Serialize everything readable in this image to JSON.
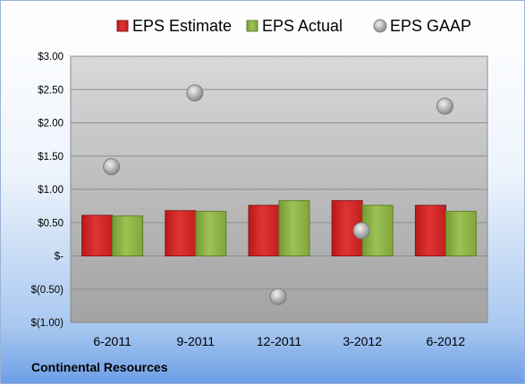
{
  "chart_data": {
    "type": "bar",
    "categories": [
      "6-2011",
      "9-2011",
      "12-2011",
      "3-2012",
      "6-2012"
    ],
    "series": [
      {
        "name": "EPS Estimate",
        "kind": "bar",
        "color": "#d42a2a",
        "values": [
          0.61,
          0.68,
          0.76,
          0.83,
          0.76
        ]
      },
      {
        "name": "EPS Actual",
        "kind": "bar",
        "color": "#8db445",
        "values": [
          0.6,
          0.67,
          0.83,
          0.76,
          0.67
        ]
      },
      {
        "name": "EPS GAAP",
        "kind": "scatter",
        "color": "#b5b5b5",
        "values": [
          1.34,
          2.45,
          -0.61,
          0.38,
          2.25
        ]
      }
    ],
    "yticks": [
      3.0,
      2.5,
      2.0,
      1.5,
      1.0,
      0.5,
      0,
      -0.5,
      -1.0
    ],
    "ytick_labels": [
      "$3.00",
      "$2.50",
      "$2.00",
      "$1.50",
      "$1.00",
      "$0.50",
      "$-",
      "$(0.50)",
      "$(1.00)"
    ],
    "ylim": [
      -1.0,
      3.0
    ],
    "grid": true,
    "legend_position": "top"
  },
  "footer": {
    "company": "Continental Resources"
  }
}
